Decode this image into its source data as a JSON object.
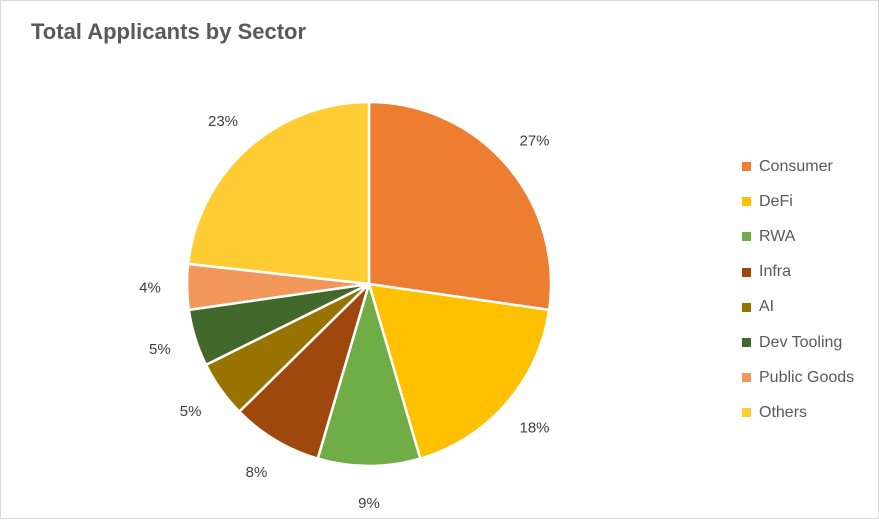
{
  "chart_data": {
    "type": "pie",
    "title": "Total Applicants by Sector",
    "slices": [
      {
        "label": "Consumer",
        "value": 27,
        "value_label": "27%",
        "color": "#ED7D31"
      },
      {
        "label": "DeFi",
        "value": 18,
        "value_label": "18%",
        "color": "#FFC000"
      },
      {
        "label": "RWA",
        "value": 9,
        "value_label": "9%",
        "color": "#70AD47"
      },
      {
        "label": "Infra",
        "value": 8,
        "value_label": "8%",
        "color": "#9E480E"
      },
      {
        "label": "AI",
        "value": 5,
        "value_label": "5%",
        "color": "#997300"
      },
      {
        "label": "Dev Tooling",
        "value": 5,
        "value_label": "5%",
        "color": "#43682B"
      },
      {
        "label": "Public Goods",
        "value": 4,
        "value_label": "4%",
        "color": "#F1975A"
      },
      {
        "label": "Others",
        "value": 23,
        "value_label": "23%",
        "color": "#FFCD33"
      }
    ],
    "legend_position": "right",
    "start_angle": "12 o'clock",
    "direction": "clockwise"
  }
}
